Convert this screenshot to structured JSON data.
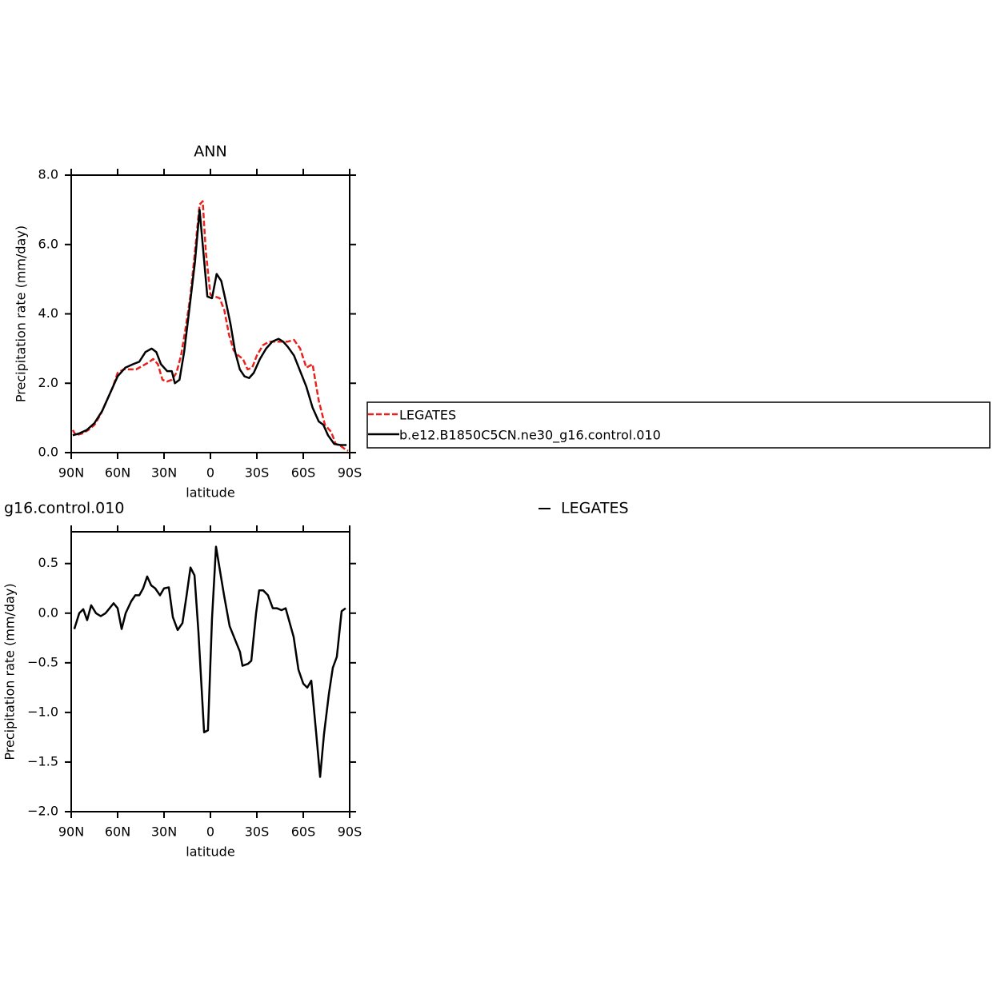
{
  "chart_data": [
    {
      "type": "line",
      "title": "ANN",
      "xlabel": "latitude",
      "ylabel": "Precipitation rate (mm/day)",
      "xlim": [
        90,
        -90
      ],
      "xticks": [
        {
          "value": 90,
          "label": "90N"
        },
        {
          "value": 60,
          "label": "60N"
        },
        {
          "value": 30,
          "label": "30N"
        },
        0,
        {
          "value": -30,
          "label": "30S"
        },
        {
          "value": -60,
          "label": "60S"
        },
        {
          "value": -90,
          "label": "90S"
        }
      ],
      "ylim": [
        0,
        8
      ],
      "yticks": [
        {
          "value": 0,
          "label": "0.0"
        },
        {
          "value": 2,
          "label": "2.0"
        },
        {
          "value": 4,
          "label": "4.0"
        },
        {
          "value": 6,
          "label": "6.0"
        },
        {
          "value": 8,
          "label": "8.0"
        }
      ],
      "grid": false,
      "series": [
        {
          "name": "LEGATES",
          "color": "#e8231e",
          "dash": true,
          "x": [
            89,
            87,
            83,
            79,
            75,
            71,
            67,
            63,
            60,
            56,
            52,
            48,
            44,
            40,
            37,
            34,
            31,
            28,
            25,
            22,
            19,
            16,
            13,
            10,
            7,
            5,
            3,
            0,
            -3,
            -6,
            -9,
            -12,
            -15,
            -18,
            -21,
            -24,
            -27,
            -30,
            -34,
            -38,
            -42,
            -46,
            -50,
            -54,
            -58,
            -62,
            -66,
            -70,
            -74,
            -78,
            -81,
            -84,
            -87,
            -89
          ],
          "values": [
            0.65,
            0.5,
            0.55,
            0.65,
            0.8,
            1.1,
            1.5,
            1.9,
            2.3,
            2.4,
            2.4,
            2.4,
            2.5,
            2.6,
            2.7,
            2.55,
            2.1,
            2.05,
            2.1,
            2.3,
            2.8,
            3.6,
            4.5,
            5.8,
            7.15,
            7.25,
            5.8,
            4.55,
            4.5,
            4.45,
            4.1,
            3.4,
            2.95,
            2.8,
            2.7,
            2.4,
            2.45,
            2.8,
            3.1,
            3.2,
            3.2,
            3.2,
            3.2,
            3.25,
            3.0,
            2.45,
            2.55,
            1.5,
            0.8,
            0.6,
            0.25,
            0.2,
            0.1,
            0.05
          ]
        },
        {
          "name": "b.e12.B1850C5CN.ne30_g16.control.010",
          "color": "#000000",
          "dash": false,
          "x": [
            89,
            85,
            80,
            75,
            70,
            65,
            60,
            55,
            50,
            46,
            42,
            38,
            35,
            32,
            28,
            25,
            23,
            20,
            17,
            14,
            10,
            7,
            5,
            2,
            -1,
            -4,
            -7,
            -10,
            -13,
            -16,
            -19,
            -22,
            -25,
            -28,
            -32,
            -36,
            -40,
            -44,
            -47,
            -50,
            -54,
            -58,
            -62,
            -66,
            -70,
            -73,
            -76,
            -80,
            -84,
            -88
          ],
          "values": [
            0.5,
            0.55,
            0.65,
            0.85,
            1.2,
            1.7,
            2.2,
            2.45,
            2.55,
            2.62,
            2.9,
            3.0,
            2.9,
            2.55,
            2.35,
            2.35,
            2.0,
            2.1,
            2.9,
            4.0,
            5.5,
            7.0,
            6.0,
            4.5,
            4.45,
            5.15,
            4.95,
            4.35,
            3.7,
            2.9,
            2.4,
            2.2,
            2.15,
            2.3,
            2.7,
            3.0,
            3.2,
            3.28,
            3.2,
            3.05,
            2.8,
            2.35,
            1.9,
            1.3,
            0.9,
            0.8,
            0.5,
            0.25,
            0.22,
            0.22
          ]
        }
      ]
    },
    {
      "type": "line",
      "title": "g16.control.010",
      "xlabel": "latitude",
      "ylabel": "Precipitation rate (mm/day)",
      "xlim": [
        90,
        -90
      ],
      "xticks": [
        {
          "value": 90,
          "label": "90N"
        },
        {
          "value": 60,
          "label": "60N"
        },
        {
          "value": 30,
          "label": "30N"
        },
        0,
        {
          "value": -30,
          "label": "30S"
        },
        {
          "value": -60,
          "label": "60S"
        },
        {
          "value": -90,
          "label": "90S"
        }
      ],
      "ylim": [
        -2.0,
        0.82
      ],
      "yticks": [
        {
          "value": -2,
          "label": "−2.0"
        },
        {
          "value": -1.5,
          "label": "−1.5"
        },
        {
          "value": -1,
          "label": "−1.0"
        },
        {
          "value": -0.5,
          "label": "−0.5"
        },
        {
          "value": 0,
          "label": "0.0"
        },
        {
          "value": 0.5,
          "label": "0.5"
        }
      ],
      "grid": false,
      "series": [
        {
          "name": "LEGATES",
          "color": "#000000",
          "dash": false,
          "x": [
            88,
            84.8,
            82.2,
            79.7,
            77.1,
            74,
            70.9,
            67.8,
            65.7,
            62.6,
            60,
            57.4,
            54.8,
            51.2,
            48.6,
            46,
            43.5,
            40.9,
            38.3,
            35.7,
            32.6,
            30,
            26.9,
            24.3,
            21.2,
            18.1,
            15.5,
            12.9,
            10.3,
            7.8,
            4.1,
            1.6,
            -1,
            -3.6,
            -8.8,
            -12.4,
            -16,
            -19.1,
            -20.7,
            -24.3,
            -26.4,
            -29.5,
            -31.5,
            -34.1,
            -37.2,
            -40.3,
            -42.9,
            -46,
            -48.6,
            -53.8,
            -56.9,
            -60,
            -62.6,
            -65.2,
            -68.3,
            -70.9,
            -73.4,
            -76.6,
            -79.1,
            -81.7,
            -84.8,
            -87.4
          ],
          "values": [
            -0.16,
            0,
            0.04,
            -0.07,
            0.08,
            0,
            -0.03,
            0,
            0.04,
            0.1,
            0.05,
            -0.16,
            0,
            0.12,
            0.18,
            0.18,
            0.25,
            0.37,
            0.28,
            0.25,
            0.18,
            0.25,
            0.26,
            -0.04,
            -0.17,
            -0.1,
            0.17,
            0.46,
            0.38,
            -0.18,
            -1.2,
            -1.18,
            -0.06,
            0.67,
            0.18,
            -0.13,
            -0.27,
            -0.39,
            -0.53,
            -0.51,
            -0.48,
            0,
            0.23,
            0.23,
            0.18,
            0.05,
            0.05,
            0.03,
            0.05,
            -0.24,
            -0.57,
            -0.71,
            -0.75,
            -0.68,
            -1.2,
            -1.65,
            -1.22,
            -0.81,
            -0.55,
            -0.44,
            0.02,
            0.05
          ]
        }
      ]
    }
  ]
}
